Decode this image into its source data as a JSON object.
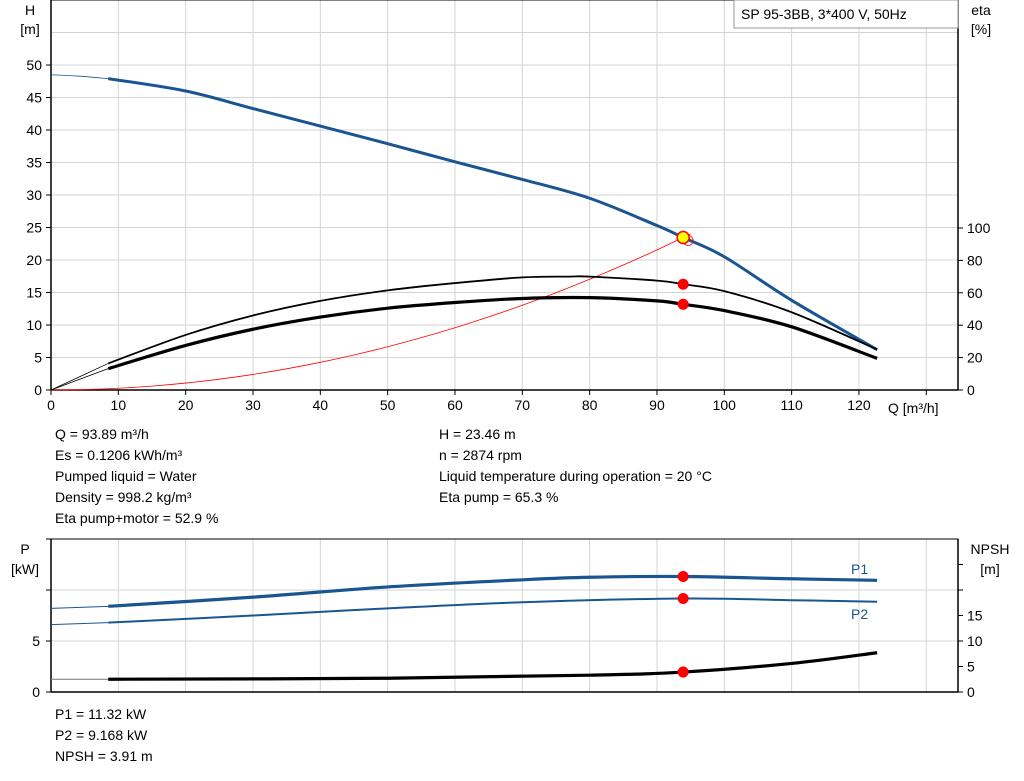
{
  "chart_data": [
    {
      "type": "line",
      "title": "SP 95-3BB, 3*400 V, 50Hz",
      "xlabel": "Q [m³/h]",
      "ylabel": "H [m]",
      "ylabel_name": "H",
      "ylabel_unit": "[m]",
      "y2label_name": "eta",
      "y2label_unit": "[%]",
      "xlim": [
        0,
        135
      ],
      "ylim": [
        0,
        60
      ],
      "y2lim": [
        0,
        100
      ],
      "grid": true,
      "xticks": [
        "0",
        "10",
        "20",
        "30",
        "40",
        "50",
        "60",
        "70",
        "80",
        "90",
        "100",
        "110",
        "120"
      ],
      "yticks": [
        "0",
        "5",
        "10",
        "15",
        "20",
        "25",
        "30",
        "35",
        "40",
        "45",
        "50"
      ],
      "y2ticks": [
        "0",
        "20",
        "40",
        "60",
        "80",
        "100"
      ],
      "series": [
        {
          "key": "H",
          "axis": "left",
          "color": "#1a5591",
          "extrapolated": {
            "x": [
              0,
              4,
              8.5
            ],
            "y": [
              48.5,
              48.3,
              47.9
            ]
          },
          "x": [
            8.5,
            20,
            30,
            40,
            50,
            60,
            70,
            80,
            90,
            93.89,
            100,
            110,
            122.7
          ],
          "y": [
            47.9,
            46,
            43.3,
            40.6,
            37.9,
            35.1,
            32.4,
            29.5,
            25.3,
            23.46,
            20.5,
            13.8,
            6.2
          ]
        },
        {
          "key": "eta_pump",
          "axis": "right",
          "color": "#000000",
          "extrapolated": {
            "x": [
              0,
              8.5
            ],
            "y": [
              0,
              16.4
            ]
          },
          "x": [
            8.5,
            20,
            30,
            40,
            50,
            60,
            70,
            77,
            80,
            90,
            93.89,
            100,
            110,
            122.7
          ],
          "y": [
            16.4,
            34,
            46,
            55,
            61.5,
            66,
            69.5,
            70,
            70,
            67.5,
            65.3,
            61,
            48,
            25
          ]
        },
        {
          "key": "eta_pump_motor",
          "axis": "right",
          "color": "#000000",
          "extrapolated": {
            "x": [
              0,
              8.5
            ],
            "y": [
              0,
              13.2
            ]
          },
          "x": [
            8.5,
            20,
            30,
            40,
            50,
            60,
            70,
            80,
            90,
            93.89,
            100,
            110,
            122.7
          ],
          "y": [
            13.2,
            27.5,
            37.5,
            45,
            50.5,
            54,
            56.5,
            57,
            55,
            52.9,
            49,
            39,
            19.5
          ]
        },
        {
          "key": "system_curve",
          "axis": "left",
          "color": "#ff0000",
          "formula": "H = 23.46*(Q/93.89)^2",
          "x_range": [
            0,
            95
          ]
        }
      ],
      "duty_point": {
        "Q": 93.89,
        "H": 23.46,
        "eta_pump": 65.3,
        "eta_pump_motor": 52.9
      }
    },
    {
      "type": "line",
      "ylabel_name": "P",
      "ylabel_unit": "[kW]",
      "y2label_name": "NPSH",
      "y2label_unit": "[m]",
      "xlim": [
        0,
        135
      ],
      "ylim": [
        0,
        15
      ],
      "y2lim": [
        0,
        30
      ],
      "grid": true,
      "yticks": [
        "0",
        "5"
      ],
      "y2ticks": [
        "0",
        "5",
        "10",
        "15"
      ],
      "series": [
        {
          "name": "P1",
          "axis": "left",
          "color": "#1a5591",
          "extrapolated": {
            "x": [
              0,
              8.5
            ],
            "y": [
              8.2,
              8.4
            ]
          },
          "x": [
            8.5,
            30,
            50,
            70,
            80,
            93.89,
            110,
            122.7
          ],
          "y": [
            8.4,
            9.3,
            10.3,
            11.0,
            11.25,
            11.32,
            11.1,
            10.95
          ]
        },
        {
          "name": "P2",
          "axis": "left",
          "color": "#1a5591",
          "extrapolated": {
            "x": [
              0,
              8.5
            ],
            "y": [
              6.6,
              6.8
            ]
          },
          "x": [
            8.5,
            30,
            50,
            70,
            93.89,
            110,
            122.7
          ],
          "y": [
            6.8,
            7.5,
            8.2,
            8.8,
            9.168,
            9.0,
            8.85
          ]
        },
        {
          "key": "NPSH",
          "axis": "right",
          "color": "#000000",
          "extrapolated": {
            "x": [
              0,
              8.5
            ],
            "y": [
              2.5,
              2.5
            ]
          },
          "x": [
            8.5,
            50,
            80,
            93.89,
            110,
            122.7
          ],
          "y": [
            2.5,
            2.7,
            3.3,
            3.91,
            5.6,
            7.7
          ]
        }
      ],
      "duty_point": {
        "Q": 93.89,
        "P1": 11.32,
        "P2": 9.168,
        "NPSH": 3.91
      }
    }
  ],
  "info": {
    "left": [
      "Q = 93.89 m³/h",
      "Es = 0.1206 kWh/m³",
      "Pumped liquid = Water",
      "Density = 998.2 kg/m³",
      "Eta pump+motor = 52.9 %"
    ],
    "right": [
      "H = 23.46 m",
      "n = 2874 rpm",
      "Liquid temperature during operation = 20 °C",
      "Eta pump = 65.3 %"
    ],
    "bottom": [
      "P1 = 11.32 kW",
      "P2 = 9.168 kW",
      "NPSH = 3.91 m"
    ]
  }
}
